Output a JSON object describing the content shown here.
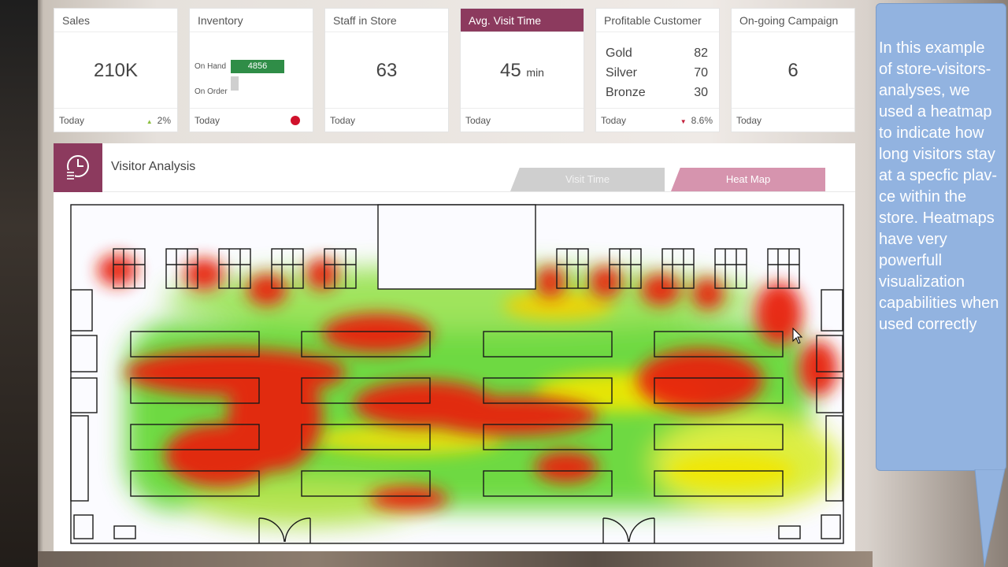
{
  "kpis": [
    {
      "title": "Sales",
      "value": "210K",
      "foot": "Today",
      "trend": "2%"
    },
    {
      "title": "Inventory",
      "foot": "Today",
      "on_hand_label": "On Hand",
      "on_hand_value": "4856",
      "on_order_label": "On Order",
      "status_color": "#d0112b"
    },
    {
      "title": "Staff in Store",
      "value": "63",
      "foot": "Today"
    },
    {
      "title": "Avg. Visit Time",
      "value": "45",
      "unit": "min",
      "foot": "Today"
    },
    {
      "title": "Profitable Customer",
      "foot": "Today",
      "trend": "8.6%",
      "rows": [
        {
          "label": "Gold",
          "value": "82"
        },
        {
          "label": "Silver",
          "value": "70"
        },
        {
          "label": "Bronze",
          "value": "30"
        }
      ]
    },
    {
      "title": "On-going Campaign",
      "value": "6",
      "foot": "Today"
    }
  ],
  "panel": {
    "title": "Visitor Analysis",
    "tab_visit_time": "Visit Time",
    "tab_heat_map": "Heat Map",
    "active_tab": "Heat Map",
    "icon": "clock-list-icon"
  },
  "callout": {
    "text": "In this example of store-visitors-analyses, we used a heatmap to indicate how long visitors stay at a specfic plav-ce within the store. Heatmaps have very powerfull visualization capabilities when used correctly"
  },
  "colors": {
    "accent": "#8c3a5e",
    "heat_tab": "#d694ae",
    "callout": "#92b3e0",
    "inventory_bar": "#2f8d47",
    "heat_high": "#e8220f",
    "heat_mid": "#f2e600",
    "heat_low": "#56d420"
  }
}
